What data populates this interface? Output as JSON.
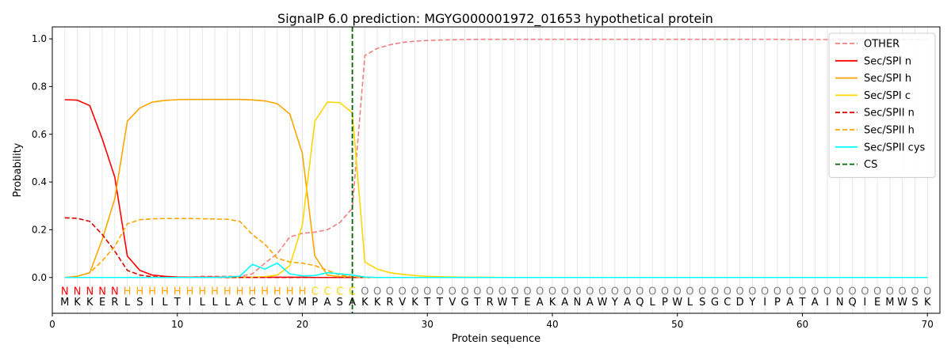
{
  "chart_data": {
    "type": "line",
    "title": "SignalP 6.0 prediction: MGYG000001972_01653 hypothetical protein",
    "xlabel": "Protein sequence",
    "ylabel": "Probability",
    "xlim": [
      0,
      71
    ],
    "ylim": [
      -0.15,
      1.05
    ],
    "xticks": [
      0,
      10,
      20,
      30,
      40,
      50,
      60,
      70
    ],
    "yticks": [
      "0.0",
      "0.2",
      "0.4",
      "0.6",
      "0.8",
      "1.0"
    ],
    "legend_position": "top-right",
    "vertical_grid": "one line per residue",
    "sequence": [
      "M",
      "K",
      "K",
      "E",
      "R",
      "L",
      "S",
      "I",
      "L",
      "T",
      "I",
      "L",
      "L",
      "L",
      "A",
      "C",
      "L",
      "C",
      "V",
      "M",
      "P",
      "A",
      "S",
      "A",
      "K",
      "K",
      "R",
      "V",
      "K",
      "T",
      "T",
      "V",
      "G",
      "T",
      "R",
      "W",
      "T",
      "E",
      "A",
      "K",
      "A",
      "N",
      "A",
      "W",
      "Y",
      "A",
      "Q",
      "L",
      "P",
      "W",
      "L",
      "S",
      "G",
      "C",
      "D",
      "Y",
      "I",
      "P",
      "A",
      "T",
      "A",
      "I",
      "N",
      "Q",
      "I",
      "E",
      "M",
      "W",
      "S",
      "K"
    ],
    "labels": [
      "N",
      "N",
      "N",
      "N",
      "N",
      "H",
      "H",
      "H",
      "H",
      "H",
      "H",
      "H",
      "H",
      "H",
      "H",
      "H",
      "H",
      "H",
      "H",
      "H",
      "C",
      "C",
      "C",
      "C",
      "O",
      "O",
      "O",
      "O",
      "O",
      "O",
      "O",
      "O",
      "O",
      "O",
      "O",
      "O",
      "O",
      "O",
      "O",
      "O",
      "O",
      "O",
      "O",
      "O",
      "O",
      "O",
      "O",
      "O",
      "O",
      "O",
      "O",
      "O",
      "O",
      "O",
      "O",
      "O",
      "O",
      "O",
      "O",
      "O",
      "O",
      "O",
      "O",
      "O",
      "O",
      "O",
      "O",
      "O",
      "O",
      "O"
    ],
    "label_colors": {
      "N": "#ff0000",
      "H": "#ffa500",
      "C": "#ffd700",
      "O": "#808080"
    },
    "cs_position": 24,
    "series": [
      {
        "name": "OTHER",
        "color": "#f08080",
        "dash": "dashed",
        "values": [
          0.0,
          0.0,
          0.0,
          0.0,
          0.0,
          0.0,
          0.0,
          0.0,
          0.0,
          0.0,
          0.0,
          0.005,
          0.005,
          0.005,
          0.005,
          0.015,
          0.06,
          0.1,
          0.17,
          0.185,
          0.19,
          0.2,
          0.23,
          0.29,
          0.93,
          0.96,
          0.975,
          0.985,
          0.99,
          0.993,
          0.995,
          0.996,
          0.997,
          0.998,
          0.998,
          0.998,
          0.998,
          0.998,
          0.998,
          0.998,
          0.998,
          0.998,
          0.998,
          0.998,
          0.998,
          0.998,
          0.998,
          0.998,
          0.998,
          0.998,
          0.998,
          0.998,
          0.998,
          0.998,
          0.998,
          0.998,
          0.998,
          0.998,
          0.997,
          0.997,
          0.997,
          0.997,
          0.997,
          0.997,
          0.997,
          0.997,
          0.997,
          0.997,
          0.997,
          0.997
        ]
      },
      {
        "name": "Sec/SPI n",
        "color": "#ff0000",
        "dash": "solid",
        "values": [
          0.745,
          0.743,
          0.72,
          0.58,
          0.42,
          0.09,
          0.03,
          0.01,
          0.005,
          0.002,
          0.001,
          0.001,
          0.001,
          0.001,
          0.001,
          0.001,
          0.001,
          0.001,
          0.001,
          0.001,
          0.0,
          0.0,
          0.0,
          0.0,
          0.0,
          0.0,
          0.0,
          0.0,
          0.0,
          0.0,
          0.0,
          0.0,
          0.0,
          0.0,
          0.0,
          0.0,
          0.0,
          0.0,
          0.0,
          0.0,
          0.0,
          0.0,
          0.0,
          0.0,
          0.0,
          0.0,
          0.0,
          0.0,
          0.0,
          0.0,
          0.0,
          0.0,
          0.0,
          0.0,
          0.0,
          0.0,
          0.0,
          0.0,
          0.0,
          0.0,
          0.0,
          0.0,
          0.0,
          0.0,
          0.0,
          0.0,
          0.0,
          0.0,
          0.0,
          0.0
        ]
      },
      {
        "name": "Sec/SPI h",
        "color": "#ffa500",
        "dash": "solid",
        "values": [
          0.0,
          0.005,
          0.02,
          0.16,
          0.33,
          0.655,
          0.71,
          0.735,
          0.742,
          0.745,
          0.746,
          0.746,
          0.746,
          0.746,
          0.746,
          0.744,
          0.74,
          0.728,
          0.685,
          0.52,
          0.09,
          0.01,
          0.003,
          0.002,
          0.0,
          0.0,
          0.0,
          0.0,
          0.0,
          0.0,
          0.0,
          0.0,
          0.0,
          0.0,
          0.0,
          0.0,
          0.0,
          0.0,
          0.0,
          0.0,
          0.0,
          0.0,
          0.0,
          0.0,
          0.0,
          0.0,
          0.0,
          0.0,
          0.0,
          0.0,
          0.0,
          0.0,
          0.0,
          0.0,
          0.0,
          0.0,
          0.0,
          0.0,
          0.0,
          0.0,
          0.0,
          0.0,
          0.0,
          0.0,
          0.0,
          0.0,
          0.0,
          0.0,
          0.0,
          0.0
        ]
      },
      {
        "name": "Sec/SPI c",
        "color": "#ffd700",
        "dash": "solid",
        "values": [
          0.0,
          0.0,
          0.0,
          0.0,
          0.0,
          0.0,
          0.0,
          0.0,
          0.0,
          0.0,
          0.0,
          0.0,
          0.0,
          0.0,
          0.0,
          0.001,
          0.003,
          0.01,
          0.05,
          0.22,
          0.655,
          0.735,
          0.733,
          0.69,
          0.065,
          0.035,
          0.02,
          0.013,
          0.008,
          0.005,
          0.003,
          0.002,
          0.001,
          0.001,
          0.001,
          0.0,
          0.0,
          0.0,
          0.0,
          0.0,
          0.0,
          0.0,
          0.0,
          0.0,
          0.0,
          0.0,
          0.0,
          0.0,
          0.0,
          0.0,
          0.0,
          0.0,
          0.0,
          0.0,
          0.0,
          0.0,
          0.0,
          0.0,
          0.0,
          0.0,
          0.0,
          0.0,
          0.0,
          0.0,
          0.0,
          0.0,
          0.0,
          0.0,
          0.0,
          0.0
        ]
      },
      {
        "name": "Sec/SPII n",
        "color": "#dd0000",
        "dash": "dashed",
        "values": [
          0.25,
          0.248,
          0.235,
          0.18,
          0.11,
          0.03,
          0.01,
          0.003,
          0.001,
          0.0,
          0.0,
          0.0,
          0.0,
          0.0,
          0.0,
          0.0,
          0.0,
          0.0,
          0.0,
          0.0,
          0.0,
          0.0,
          0.0,
          0.0,
          0.0,
          0.0,
          0.0,
          0.0,
          0.0,
          0.0,
          0.0,
          0.0,
          0.0,
          0.0,
          0.0,
          0.0,
          0.0,
          0.0,
          0.0,
          0.0,
          0.0,
          0.0,
          0.0,
          0.0,
          0.0,
          0.0,
          0.0,
          0.0,
          0.0,
          0.0,
          0.0,
          0.0,
          0.0,
          0.0,
          0.0,
          0.0,
          0.0,
          0.0,
          0.0,
          0.0,
          0.0,
          0.0,
          0.0,
          0.0,
          0.0,
          0.0,
          0.0,
          0.0,
          0.0,
          0.0
        ]
      },
      {
        "name": "Sec/SPII h",
        "color": "#ffa500",
        "dash": "dashed",
        "values": [
          0.0,
          0.005,
          0.02,
          0.07,
          0.13,
          0.225,
          0.242,
          0.246,
          0.247,
          0.247,
          0.247,
          0.246,
          0.245,
          0.244,
          0.235,
          0.18,
          0.14,
          0.08,
          0.065,
          0.06,
          0.05,
          0.03,
          0.01,
          0.003,
          0.0,
          0.0,
          0.0,
          0.0,
          0.0,
          0.0,
          0.0,
          0.0,
          0.0,
          0.0,
          0.0,
          0.0,
          0.0,
          0.0,
          0.0,
          0.0,
          0.0,
          0.0,
          0.0,
          0.0,
          0.0,
          0.0,
          0.0,
          0.0,
          0.0,
          0.0,
          0.0,
          0.0,
          0.0,
          0.0,
          0.0,
          0.0,
          0.0,
          0.0,
          0.0,
          0.0,
          0.0,
          0.0,
          0.0,
          0.0,
          0.0,
          0.0,
          0.0,
          0.0,
          0.0,
          0.0
        ]
      },
      {
        "name": "Sec/SPII cys",
        "color": "#00ffff",
        "dash": "solid",
        "values": [
          0.0,
          0.0,
          0.0,
          0.0,
          0.0,
          0.0,
          0.0,
          0.0,
          0.0,
          0.0,
          0.0,
          0.0,
          0.0,
          0.002,
          0.005,
          0.055,
          0.035,
          0.06,
          0.015,
          0.007,
          0.008,
          0.02,
          0.015,
          0.01,
          0.002,
          0.0,
          0.0,
          0.0,
          0.0,
          0.0,
          0.0,
          0.0,
          0.0,
          0.0,
          0.0,
          0.0,
          0.0,
          0.0,
          0.0,
          0.0,
          0.0,
          0.0,
          0.0,
          0.0,
          0.0,
          0.0,
          0.0,
          0.0,
          0.0,
          0.0,
          0.0,
          0.0,
          0.0,
          0.0,
          0.0,
          0.0,
          0.0,
          0.0,
          0.0,
          0.0,
          0.0,
          0.0,
          0.0,
          0.0,
          0.0,
          0.0,
          0.0,
          0.0,
          0.0,
          0.0
        ]
      }
    ],
    "cs_series": {
      "name": "CS",
      "color": "#006400",
      "dash": "dashed"
    }
  }
}
